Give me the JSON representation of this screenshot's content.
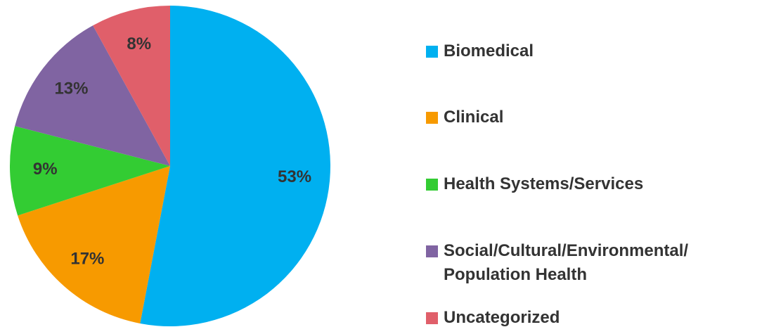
{
  "chart_data": {
    "type": "pie",
    "categories": [
      "Biomedical",
      "Clinical",
      "Health Systems/Services",
      "Social/Cultural/Environmental/ Population Health",
      "Uncategorized"
    ],
    "values": [
      53,
      17,
      9,
      13,
      8
    ],
    "value_labels": [
      "53%",
      "17%",
      "9%",
      "13%",
      "8%"
    ],
    "colors": [
      "#00b0f0",
      "#f79a00",
      "#33cc33",
      "#8064a2",
      "#e05f6a"
    ],
    "legend": "right"
  }
}
